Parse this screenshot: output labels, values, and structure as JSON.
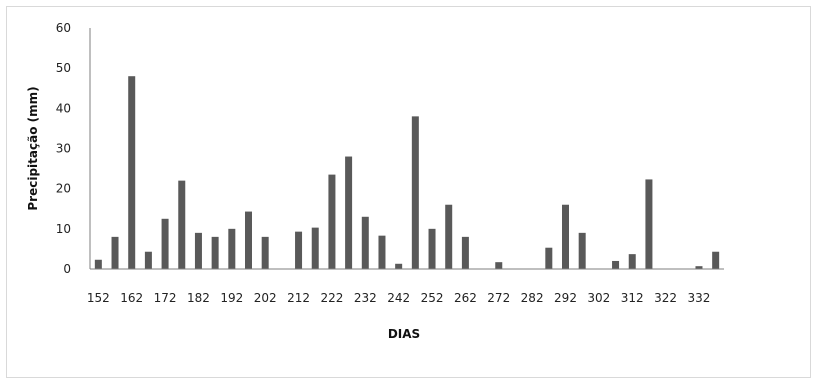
{
  "chart_data": {
    "type": "bar",
    "title": "",
    "xlabel": "DIAS",
    "ylabel": "Precipitação (mm)",
    "ylim": [
      0,
      60
    ],
    "yticks": [
      "0",
      "10",
      "20",
      "30",
      "40",
      "50",
      "60"
    ],
    "xticks": [
      "152",
      "162",
      "172",
      "182",
      "192",
      "202",
      "212",
      "222",
      "232",
      "242",
      "252",
      "262",
      "272",
      "282",
      "292",
      "302",
      "312",
      "322",
      "332"
    ],
    "grid": false,
    "legend": "none",
    "bar_color": "#595959",
    "x": [
      152,
      157,
      162,
      167,
      172,
      177,
      182,
      187,
      192,
      197,
      202,
      207,
      212,
      217,
      222,
      227,
      232,
      237,
      242,
      247,
      252,
      257,
      262,
      267,
      272,
      277,
      282,
      287,
      292,
      297,
      302,
      307,
      312,
      317,
      322,
      327,
      332,
      337
    ],
    "values": [
      2.3,
      8,
      48,
      4.3,
      12.5,
      22,
      9,
      8,
      10,
      14.3,
      8,
      0,
      9.3,
      10.3,
      23.5,
      28,
      13,
      8.3,
      1.3,
      38,
      10,
      16,
      8,
      0,
      1.7,
      0,
      0,
      5.3,
      16,
      9,
      0,
      2,
      3.7,
      22.3,
      0,
      0,
      0.7,
      4.3
    ]
  }
}
